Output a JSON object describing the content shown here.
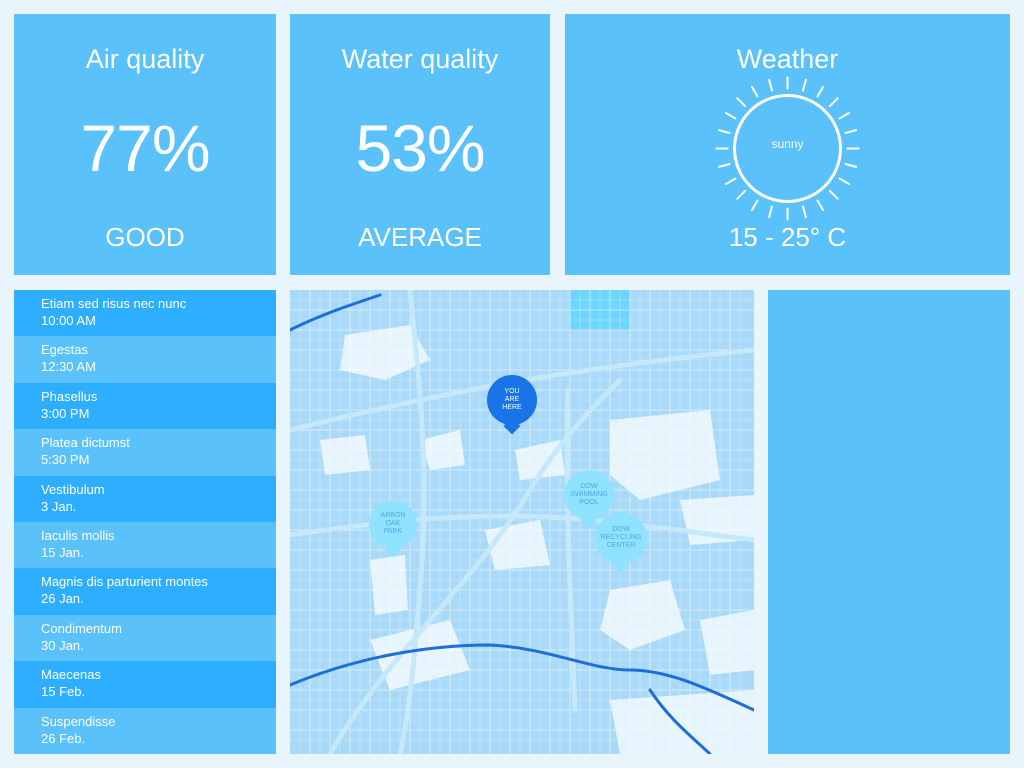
{
  "air": {
    "title": "Air quality",
    "value": "77%",
    "status": "GOOD"
  },
  "water": {
    "title": "Water quality",
    "value": "53%",
    "status": "AVERAGE"
  },
  "weather": {
    "title": "Weather",
    "condition": "sunny",
    "range": "15 - 25° C"
  },
  "schedule": [
    {
      "title": "Etiam sed risus nec nunc",
      "time": "10:00 AM"
    },
    {
      "title": "Egestas",
      "time": "12:30 AM"
    },
    {
      "title": "Phasellus",
      "time": "3:00 PM"
    },
    {
      "title": "Platea dictumst",
      "time": "5:30 PM"
    },
    {
      "title": "Vestibulum",
      "time": "3 Jan."
    },
    {
      "title": "Iaculis mollis",
      "time": "15 Jan."
    },
    {
      "title": "Magnis dis parturient montes",
      "time": "26 Jan."
    },
    {
      "title": "Condimentum",
      "time": "30 Jan."
    },
    {
      "title": "Maecenas",
      "time": "15 Feb."
    },
    {
      "title": "Suspendisse",
      "time": "26 Feb."
    }
  ],
  "map": {
    "markers": [
      {
        "id": "you-are-here",
        "lines": [
          "YOU",
          "ARE",
          "HERE"
        ],
        "color": "#1a73e8"
      },
      {
        "id": "arbon-oak-park",
        "lines": [
          "ARBON",
          "OAK",
          "PARK"
        ],
        "color": "#8fe3ff"
      },
      {
        "id": "dow-swimming-pool",
        "lines": [
          "DOW",
          "SWIMMING",
          "POOL"
        ],
        "color": "#8fe3ff"
      },
      {
        "id": "dow-recycling-center",
        "lines": [
          "DOW",
          "RECYCLING",
          "CENTER"
        ],
        "color": "#8fe3ff"
      }
    ]
  },
  "colors": {
    "panel": "#5ac1fb",
    "list_dark": "#2daeff",
    "background": "#e9f5fd",
    "map_base": "#a8d9f8"
  }
}
